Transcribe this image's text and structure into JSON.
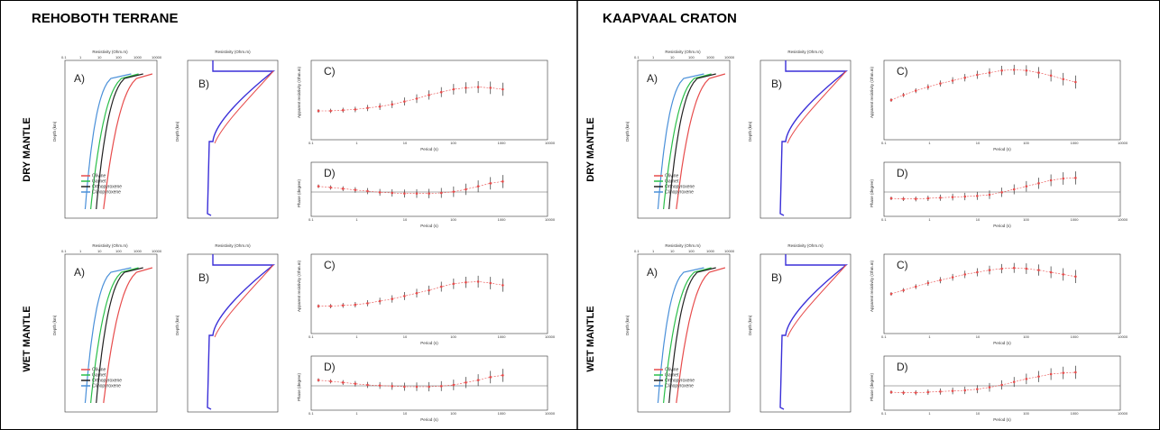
{
  "titles": {
    "left": "REHOBOTH TERRANE",
    "right": "KAAPVAAL CRATON"
  },
  "row_labels": {
    "dry": "DRY MANTLE",
    "wet": "WET MANTLE"
  },
  "colors": {
    "olivine": "#e74c4c",
    "garnet": "#2bbf4a",
    "orthopyroxene": "#222222",
    "clinopyroxene": "#4a90d9",
    "bulk": "#3a2fd8",
    "model": "#e74c4c",
    "data": "#333333"
  },
  "chart_data": [
    {
      "type": "scatter",
      "region": "REHOBOTH TERRANE",
      "condition": "DRY MANTLE",
      "panels": {
        "A": {
          "label": "A)",
          "xlabel": "Resistivity (Ohm.m)",
          "ylabel": "Depth (km)",
          "legend": [
            "Olivine",
            "Garnet",
            "Orthopyroxene",
            "Clinopyroxene"
          ]
        },
        "B": {
          "label": "B)",
          "xlabel": "Resistivity (Ohm.m)",
          "ylabel": "Depth (km)"
        },
        "C": {
          "label": "C)",
          "xlabel": "Period (s)",
          "ylabel": "Apparent resistivity (Ohm.m)",
          "data": [
            40,
            40,
            41,
            42,
            44,
            46,
            49,
            53,
            57,
            62,
            66,
            70,
            72,
            73,
            72,
            70
          ]
        },
        "D": {
          "label": "D)",
          "xlabel": "Period (s)",
          "ylabel": "Phase (degree)",
          "data": [
            50,
            48,
            46,
            44,
            42,
            40,
            39,
            38,
            38,
            38,
            39,
            41,
            45,
            50,
            55,
            58
          ]
        }
      }
    },
    {
      "type": "scatter",
      "region": "REHOBOTH TERRANE",
      "condition": "WET MANTLE",
      "panels": {
        "A": {
          "label": "A)",
          "xlabel": "Resistivity (Ohm.m)",
          "ylabel": "Depth (km)",
          "legend": [
            "Olivine",
            "Garnet",
            "Orthopyroxene",
            "Clinopyroxene"
          ]
        },
        "B": {
          "label": "B)",
          "xlabel": "Resistivity (Ohm.m)",
          "ylabel": "Depth (km)"
        },
        "C": {
          "label": "C)",
          "xlabel": "Period (s)",
          "ylabel": "Apparent resistivity (Ohm.m)",
          "data": [
            38,
            38,
            39,
            40,
            42,
            45,
            48,
            52,
            56,
            60,
            65,
            69,
            71,
            72,
            70,
            67
          ]
        },
        "D": {
          "label": "D)",
          "xlabel": "Period (s)",
          "ylabel": "Phase (degree)",
          "data": [
            50,
            48,
            46,
            44,
            42,
            41,
            40,
            39,
            39,
            39,
            40,
            42,
            46,
            50,
            55,
            58
          ]
        }
      }
    },
    {
      "type": "scatter",
      "region": "KAAPVAAL CRATON",
      "condition": "DRY MANTLE",
      "panels": {
        "A": {
          "label": "A)",
          "xlabel": "Resistivity (Ohm.m)",
          "ylabel": "Depth (km)",
          "legend": [
            "Olivine",
            "Garnet",
            "Orthopyroxene",
            "Clinopyroxene"
          ]
        },
        "B": {
          "label": "B)",
          "xlabel": "Resistivity (Ohm.m)",
          "ylabel": "Depth (km)"
        },
        "C": {
          "label": "C)",
          "xlabel": "Period (s)",
          "ylabel": "Apparent resistivity (Ohm.m)",
          "data": [
            55,
            62,
            68,
            73,
            78,
            82,
            86,
            90,
            93,
            96,
            97,
            96,
            93,
            89,
            84,
            80
          ]
        },
        "D": {
          "label": "D)",
          "xlabel": "Period (s)",
          "ylabel": "Phase (degree)",
          "data": [
            30,
            29,
            29,
            30,
            31,
            32,
            33,
            34,
            36,
            40,
            45,
            50,
            55,
            60,
            63,
            64
          ]
        }
      }
    },
    {
      "type": "scatter",
      "region": "KAAPVAAL CRATON",
      "condition": "WET MANTLE",
      "panels": {
        "A": {
          "label": "A)",
          "xlabel": "Resistivity (Ohm.m)",
          "ylabel": "Depth (km)",
          "legend": [
            "Olivine",
            "Garnet",
            "Orthopyroxene",
            "Clinopyroxene"
          ]
        },
        "B": {
          "label": "B)",
          "xlabel": "Resistivity (Ohm.m)",
          "ylabel": "Depth (km)"
        },
        "C": {
          "label": "C)",
          "xlabel": "Period (s)",
          "ylabel": "Apparent resistivity (Ohm.m)",
          "data": [
            55,
            60,
            65,
            70,
            74,
            78,
            82,
            85,
            88,
            90,
            91,
            90,
            88,
            85,
            82,
            79
          ]
        },
        "D": {
          "label": "D)",
          "xlabel": "Period (s)",
          "ylabel": "Phase (degree)",
          "data": [
            30,
            29,
            29,
            30,
            31,
            32,
            33,
            35,
            38,
            42,
            47,
            52,
            56,
            60,
            62,
            63
          ]
        }
      }
    }
  ]
}
